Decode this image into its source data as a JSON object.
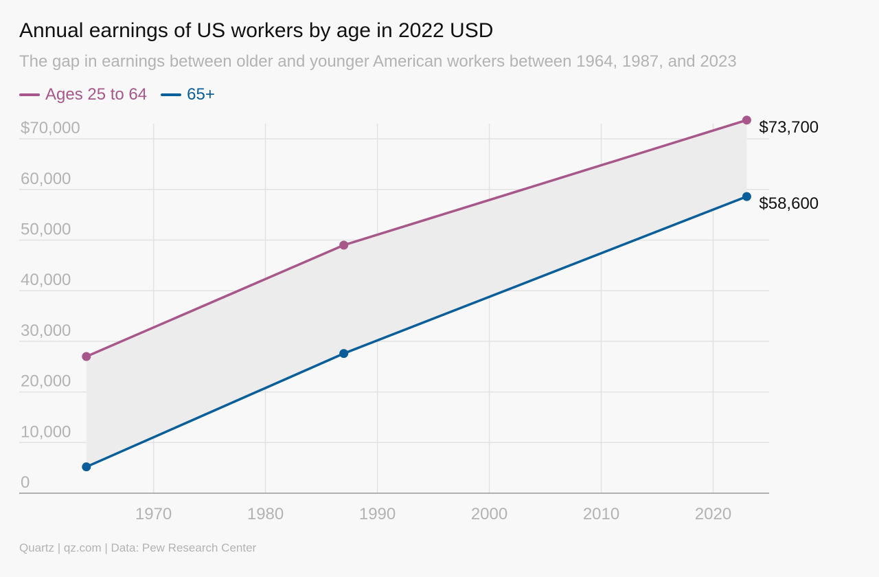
{
  "header": {
    "title": "Annual earnings of US workers by age in 2022 USD",
    "subtitle": "The gap in earnings between older and younger American workers between 1964, 1987, and 2023"
  },
  "legend": {
    "items": [
      {
        "label": "Ages 25 to 64",
        "color": "#a8578a"
      },
      {
        "label": "65+",
        "color": "#0a5e99"
      }
    ]
  },
  "colors": {
    "grid": "#e2e2e2",
    "axis": "#999999",
    "band": "#ececec",
    "axis_text": "#b3b3b3",
    "end_label_text": "#111111"
  },
  "chart_data": {
    "type": "line",
    "title": "Annual earnings of US workers by age in 2022 USD",
    "subtitle": "The gap in earnings between older and younger American workers between 1964, 1987, and 2023",
    "x": [
      1964,
      1987,
      2023
    ],
    "series": [
      {
        "name": "Ages 25 to 64",
        "color": "#a8578a",
        "values": [
          27000,
          49000,
          73700
        ]
      },
      {
        "name": "65+",
        "color": "#0a5e99",
        "values": [
          5200,
          27600,
          58600
        ]
      }
    ],
    "end_labels": [
      "$73,700",
      "$58,600"
    ],
    "shaded_gap": true,
    "xlim": [
      1958,
      2025
    ],
    "ylim": [
      0,
      73000
    ],
    "xticks": [
      1970,
      1980,
      1990,
      2000,
      2010,
      2020
    ],
    "xtick_labels": [
      "1970",
      "1980",
      "1990",
      "2000",
      "2010",
      "2020"
    ],
    "yticks": [
      0,
      10000,
      20000,
      30000,
      40000,
      50000,
      60000,
      70000
    ],
    "ytick_labels": [
      "0",
      "10,000",
      "20,000",
      "30,000",
      "40,000",
      "50,000",
      "60,000",
      "$70,000"
    ],
    "grid": true,
    "legend_position": "top-left"
  },
  "footer": {
    "source": "Quartz | qz.com | Data: Pew Research Center"
  }
}
